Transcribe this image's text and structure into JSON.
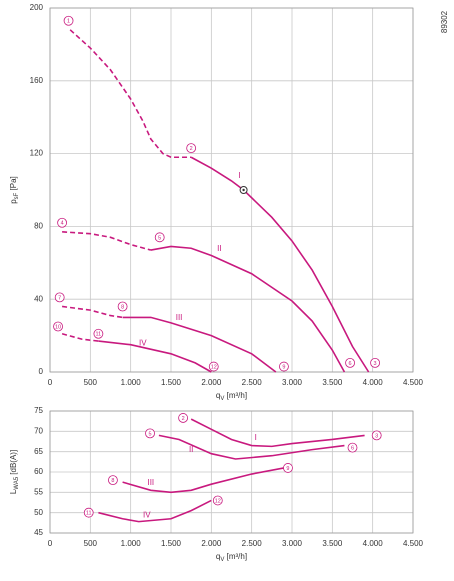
{
  "code": "89302",
  "chart_data": [
    {
      "type": "line",
      "color": "#c8197e",
      "grid": true,
      "ylabel": {
        "main": "p",
        "sub": "sF",
        "rest": " [Pa]"
      },
      "xlabel": {
        "main": "q",
        "sub": "V",
        "rest": " [m³/h]"
      },
      "xlim": [
        0,
        4500
      ],
      "ylim": [
        0,
        200
      ],
      "xticks": [
        0,
        500,
        {
          "value": 1000,
          "label": "1.000"
        },
        {
          "value": 1500,
          "label": "1.500"
        },
        {
          "value": 2000,
          "label": "2.000"
        },
        {
          "value": 2500,
          "label": "2.500"
        },
        {
          "value": 3000,
          "label": "3.000"
        },
        {
          "value": 3500,
          "label": "3.500"
        },
        {
          "value": 4000,
          "label": "4.000"
        },
        {
          "value": 4500,
          "label": "4.500"
        }
      ],
      "yticks": [
        0,
        40,
        80,
        120,
        160,
        200
      ],
      "series": [
        {
          "dashed": true,
          "x": [
            250,
            500,
            750,
            1000,
            1150,
            1250,
            1400,
            1500,
            1750
          ],
          "values": [
            188,
            178,
            166,
            150,
            138,
            128,
            120,
            118,
            118
          ]
        },
        {
          "dashed": false,
          "x": [
            1750,
            2000,
            2250,
            2400,
            2750,
            3000,
            3250,
            3500,
            3750,
            3950
          ],
          "values": [
            118,
            112,
            105,
            100,
            85,
            72,
            56,
            36,
            14,
            0
          ]
        },
        {
          "dashed": true,
          "x": [
            150,
            500,
            750,
            1000,
            1250
          ],
          "values": [
            77,
            76,
            74,
            70,
            67
          ]
        },
        {
          "dashed": false,
          "x": [
            1250,
            1500,
            1750,
            2000,
            2500,
            3000,
            3250,
            3500,
            3650
          ],
          "values": [
            67,
            69,
            68,
            64,
            54,
            39,
            28,
            12,
            0
          ]
        },
        {
          "dashed": true,
          "x": [
            150,
            500,
            750,
            900
          ],
          "values": [
            36,
            34,
            31,
            30
          ]
        },
        {
          "dashed": false,
          "x": [
            900,
            1250,
            1500,
            2000,
            2500,
            2800
          ],
          "values": [
            30,
            30,
            27,
            20,
            10,
            0
          ]
        },
        {
          "dashed": true,
          "x": [
            150,
            400,
            600
          ],
          "values": [
            21,
            18,
            17
          ]
        },
        {
          "dashed": false,
          "x": [
            600,
            1000,
            1500,
            1800,
            2000
          ],
          "values": [
            17,
            15,
            10,
            5,
            0
          ]
        }
      ],
      "markers": [
        {
          "x": 2400,
          "y": 100
        }
      ],
      "annotations": [
        {
          "text": "1",
          "x": 230,
          "y": 193,
          "circled": true
        },
        {
          "text": "2",
          "x": 1750,
          "y": 123,
          "circled": true
        },
        {
          "text": "3",
          "x": 4030,
          "y": 5,
          "circled": true
        },
        {
          "text": "4",
          "x": 150,
          "y": 82,
          "circled": true
        },
        {
          "text": "5",
          "x": 1360,
          "y": 74,
          "circled": true
        },
        {
          "text": "6",
          "x": 3720,
          "y": 5,
          "circled": true
        },
        {
          "text": "7",
          "x": 120,
          "y": 41,
          "circled": true
        },
        {
          "text": "8",
          "x": 900,
          "y": 36,
          "circled": true
        },
        {
          "text": "9",
          "x": 2900,
          "y": 3,
          "circled": true
        },
        {
          "text": "10",
          "x": 100,
          "y": 25,
          "circled": true
        },
        {
          "text": "11",
          "x": 600,
          "y": 21,
          "circled": true
        },
        {
          "text": "12",
          "x": 2030,
          "y": 3,
          "circled": true
        },
        {
          "text": "I",
          "x": 2350,
          "y": 108,
          "circled": false
        },
        {
          "text": "II",
          "x": 2100,
          "y": 68,
          "circled": false
        },
        {
          "text": "III",
          "x": 1600,
          "y": 30,
          "circled": false
        },
        {
          "text": "IV",
          "x": 1150,
          "y": 16,
          "circled": false
        }
      ]
    },
    {
      "type": "line",
      "color": "#c8197e",
      "grid": true,
      "ylabel": {
        "main": "L",
        "sub": "WA5",
        "rest": " [dB(A)]"
      },
      "xlabel": {
        "main": "q",
        "sub": "V",
        "rest": " [m³/h]"
      },
      "xlim": [
        0,
        4500
      ],
      "ylim": [
        45,
        75
      ],
      "xticks": [
        0,
        500,
        {
          "value": 1000,
          "label": "1.000"
        },
        {
          "value": 1500,
          "label": "1.500"
        },
        {
          "value": 2000,
          "label": "2.000"
        },
        {
          "value": 2500,
          "label": "2.500"
        },
        {
          "value": 3000,
          "label": "3.000"
        },
        {
          "value": 3500,
          "label": "3.500"
        },
        {
          "value": 4000,
          "label": "4.000"
        },
        {
          "value": 4500,
          "label": "4.500"
        }
      ],
      "yticks": [
        45,
        50,
        55,
        60,
        65,
        70,
        75
      ],
      "series": [
        {
          "dashed": false,
          "x": [
            1750,
            2000,
            2250,
            2500,
            2750,
            3000,
            3500,
            3900
          ],
          "values": [
            73,
            70.5,
            68,
            66.5,
            66.3,
            67,
            68,
            69
          ]
        },
        {
          "dashed": false,
          "x": [
            1350,
            1600,
            2000,
            2300,
            2750,
            3250,
            3650
          ],
          "values": [
            69,
            68,
            64.5,
            63.2,
            64,
            65.5,
            66.5
          ]
        },
        {
          "dashed": false,
          "x": [
            900,
            1250,
            1500,
            1750,
            2000,
            2500,
            2900
          ],
          "values": [
            57.5,
            55.5,
            55,
            55.5,
            57,
            59.5,
            61
          ]
        },
        {
          "dashed": false,
          "x": [
            600,
            900,
            1100,
            1500,
            1750,
            2000
          ],
          "values": [
            50,
            48.5,
            47.8,
            48.5,
            50.5,
            53
          ]
        }
      ],
      "markers": [],
      "annotations": [
        {
          "text": "2",
          "x": 1650,
          "y": 73.3,
          "circled": true
        },
        {
          "text": "3",
          "x": 4050,
          "y": 69,
          "circled": true
        },
        {
          "text": "5",
          "x": 1240,
          "y": 69.5,
          "circled": true
        },
        {
          "text": "6",
          "x": 3750,
          "y": 66,
          "circled": true
        },
        {
          "text": "8",
          "x": 780,
          "y": 58,
          "circled": true
        },
        {
          "text": "9",
          "x": 2950,
          "y": 61,
          "circled": true
        },
        {
          "text": "11",
          "x": 480,
          "y": 50,
          "circled": true
        },
        {
          "text": "12",
          "x": 2080,
          "y": 53,
          "circled": true
        },
        {
          "text": "I",
          "x": 2550,
          "y": 68.5,
          "circled": false
        },
        {
          "text": "II",
          "x": 1750,
          "y": 65.5,
          "circled": false
        },
        {
          "text": "III",
          "x": 1250,
          "y": 57.5,
          "circled": false
        },
        {
          "text": "IV",
          "x": 1200,
          "y": 49.5,
          "circled": false
        }
      ]
    }
  ]
}
